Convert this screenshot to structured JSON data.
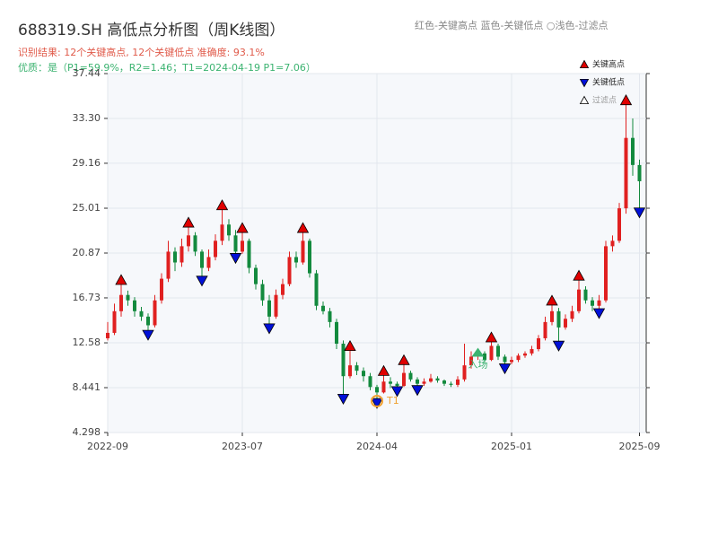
{
  "chart_data": {
    "type": "candlestick",
    "title": "688319.SH 高低点分析图（周K线图）",
    "subtitle": "识别结果: 12个关键高点, 12个关键低点  准确度: 93.1%",
    "subtitle2": "优质：是（P1=59.9%，R2=1.46；T1=2024-04-19 P1=7.06）",
    "color_note": "红色-关键高点     蓝色-关键低点   ○浅色-过滤点",
    "up_color": "#e02020",
    "down_color": "#138a3e",
    "grid": true,
    "xlim": [
      0,
      160
    ],
    "xticks": [
      {
        "value": 0,
        "label": "2022-09"
      },
      {
        "value": 40,
        "label": "2023-07"
      },
      {
        "value": 80,
        "label": "2024-04"
      },
      {
        "value": 120,
        "label": "2025-01"
      },
      {
        "value": 158,
        "label": "2025-09"
      }
    ],
    "ylim": [
      4.298,
      37.44
    ],
    "yticks": [
      4.298,
      8.441,
      12.58,
      16.73,
      20.87,
      25.01,
      29.16,
      {
        "value": 33.3,
        "label": "33.30"
      },
      37.44
    ],
    "x": [
      0,
      2,
      4,
      6,
      8,
      10,
      12,
      14,
      16,
      18,
      20,
      22,
      24,
      26,
      28,
      30,
      32,
      34,
      36,
      38,
      40,
      42,
      44,
      46,
      48,
      50,
      52,
      54,
      56,
      58,
      60,
      62,
      64,
      66,
      68,
      70,
      72,
      74,
      76,
      78,
      80,
      82,
      84,
      86,
      88,
      90,
      92,
      94,
      96,
      98,
      100,
      102,
      104,
      106,
      108,
      110,
      112,
      114,
      116,
      118,
      120,
      122,
      124,
      126,
      128,
      130,
      132,
      134,
      136,
      138,
      140,
      142,
      144,
      146,
      148,
      150,
      152,
      154,
      156,
      158
    ],
    "ohlc": [
      [
        13.0,
        14.5,
        12.8,
        13.5
      ],
      [
        13.5,
        16.2,
        13.3,
        15.5
      ],
      [
        15.5,
        18.2,
        15.0,
        17.0
      ],
      [
        17.0,
        17.4,
        16.0,
        16.5
      ],
      [
        16.5,
        16.8,
        15.0,
        15.5
      ],
      [
        15.5,
        15.9,
        14.6,
        15.0
      ],
      [
        15.0,
        15.3,
        13.5,
        14.2
      ],
      [
        14.2,
        17.0,
        14.0,
        16.5
      ],
      [
        16.5,
        19.0,
        16.2,
        18.5
      ],
      [
        18.5,
        22.0,
        18.2,
        21.0
      ],
      [
        21.0,
        21.4,
        19.2,
        20.0
      ],
      [
        20.0,
        22.2,
        19.6,
        21.5
      ],
      [
        21.5,
        23.5,
        21.0,
        22.5
      ],
      [
        22.5,
        22.8,
        20.6,
        21.0
      ],
      [
        21.0,
        21.2,
        18.5,
        19.5
      ],
      [
        19.5,
        21.2,
        19.2,
        20.5
      ],
      [
        20.5,
        22.6,
        20.2,
        22.0
      ],
      [
        22.0,
        25.1,
        21.6,
        23.5
      ],
      [
        23.5,
        24.0,
        22.0,
        22.5
      ],
      [
        22.5,
        23.0,
        20.6,
        21.0
      ],
      [
        21.0,
        23.0,
        20.8,
        22.0
      ],
      [
        22.0,
        22.2,
        19.0,
        19.5
      ],
      [
        19.5,
        19.8,
        17.5,
        18.0
      ],
      [
        18.0,
        18.4,
        16.0,
        16.5
      ],
      [
        16.5,
        17.0,
        14.1,
        15.0
      ],
      [
        15.0,
        17.5,
        14.8,
        17.0
      ],
      [
        17.0,
        18.5,
        16.6,
        18.0
      ],
      [
        18.0,
        21.0,
        17.8,
        20.5
      ],
      [
        20.5,
        21.0,
        19.5,
        20.0
      ],
      [
        20.0,
        23.0,
        19.8,
        22.0
      ],
      [
        22.0,
        22.2,
        18.6,
        19.0
      ],
      [
        19.0,
        19.3,
        15.6,
        16.0
      ],
      [
        16.0,
        16.4,
        15.2,
        15.5
      ],
      [
        15.5,
        15.8,
        14.0,
        14.5
      ],
      [
        14.5,
        14.8,
        12.0,
        12.5
      ],
      [
        12.5,
        12.8,
        7.6,
        9.5
      ],
      [
        9.5,
        12.1,
        9.3,
        10.5
      ],
      [
        10.5,
        10.8,
        9.6,
        10.0
      ],
      [
        10.0,
        10.3,
        9.0,
        9.5
      ],
      [
        9.5,
        9.8,
        8.2,
        8.5
      ],
      [
        8.5,
        8.7,
        7.2,
        8.0
      ],
      [
        8.0,
        9.8,
        7.9,
        9.0
      ],
      [
        9.0,
        9.4,
        8.4,
        8.8
      ],
      [
        8.8,
        9.0,
        8.3,
        8.6
      ],
      [
        8.6,
        10.8,
        8.5,
        9.8
      ],
      [
        9.8,
        10.0,
        9.0,
        9.2
      ],
      [
        9.2,
        9.4,
        8.4,
        8.8
      ],
      [
        8.8,
        9.3,
        8.6,
        9.0
      ],
      [
        9.0,
        9.7,
        8.9,
        9.3
      ],
      [
        9.3,
        9.5,
        8.9,
        9.1
      ],
      [
        9.1,
        9.2,
        8.6,
        8.8
      ],
      [
        8.8,
        9.0,
        8.5,
        8.7
      ],
      [
        8.7,
        9.5,
        8.5,
        9.2
      ],
      [
        9.2,
        12.5,
        9.0,
        10.5
      ],
      [
        10.5,
        11.8,
        10.2,
        11.3
      ],
      [
        11.3,
        12.0,
        11.0,
        11.6
      ],
      [
        11.6,
        11.8,
        10.8,
        11.0
      ],
      [
        11.0,
        12.9,
        10.9,
        12.3
      ],
      [
        12.3,
        12.5,
        11.0,
        11.3
      ],
      [
        11.3,
        11.5,
        10.4,
        10.8
      ],
      [
        10.8,
        11.3,
        10.6,
        11.0
      ],
      [
        11.0,
        11.6,
        10.8,
        11.4
      ],
      [
        11.4,
        11.8,
        11.2,
        11.6
      ],
      [
        11.6,
        12.3,
        11.4,
        12.0
      ],
      [
        12.0,
        13.3,
        11.8,
        13.0
      ],
      [
        13.0,
        15.0,
        12.8,
        14.5
      ],
      [
        14.5,
        16.3,
        14.2,
        15.5
      ],
      [
        15.5,
        15.8,
        12.5,
        14.0
      ],
      [
        14.0,
        15.2,
        13.8,
        14.8
      ],
      [
        14.8,
        16.0,
        14.5,
        15.5
      ],
      [
        15.5,
        18.6,
        15.3,
        17.5
      ],
      [
        17.5,
        17.8,
        16.2,
        16.5
      ],
      [
        16.5,
        16.8,
        15.5,
        16.0
      ],
      [
        16.0,
        17.0,
        15.5,
        16.5
      ],
      [
        16.5,
        22.0,
        16.3,
        21.5
      ],
      [
        21.5,
        22.5,
        21.0,
        22.0
      ],
      [
        22.0,
        25.5,
        21.8,
        25.0
      ],
      [
        25.0,
        34.8,
        24.5,
        31.5
      ],
      [
        31.5,
        33.3,
        28.0,
        29.0
      ],
      [
        29.0,
        29.5,
        24.8,
        27.5
      ]
    ],
    "series": [
      {
        "name": "关键高点",
        "color": "#e00000",
        "marker": "up",
        "x": [
          4,
          24,
          34,
          40,
          58,
          72,
          82,
          88,
          114,
          132,
          140,
          154
        ],
        "values": [
          18.2,
          23.5,
          25.1,
          23.0,
          23.0,
          12.1,
          9.8,
          10.8,
          12.9,
          16.3,
          18.6,
          34.8
        ]
      },
      {
        "name": "关键低点",
        "color": "#0010d8",
        "marker": "down",
        "x": [
          12,
          28,
          38,
          48,
          70,
          80,
          86,
          92,
          118,
          134,
          146,
          158
        ],
        "values": [
          13.5,
          18.5,
          20.6,
          14.1,
          7.6,
          7.2,
          8.3,
          8.4,
          10.4,
          12.5,
          15.5,
          24.8
        ]
      },
      {
        "name": "过滤点",
        "color": "#ffffff",
        "marker": "up",
        "x": [],
        "values": []
      }
    ],
    "annotations": [
      {
        "text": "T1",
        "x": 80,
        "y": 7.2,
        "color": "#f0a030"
      },
      {
        "text": "入场",
        "x": 110,
        "y": 10.3,
        "color": "#3cb371"
      }
    ]
  }
}
